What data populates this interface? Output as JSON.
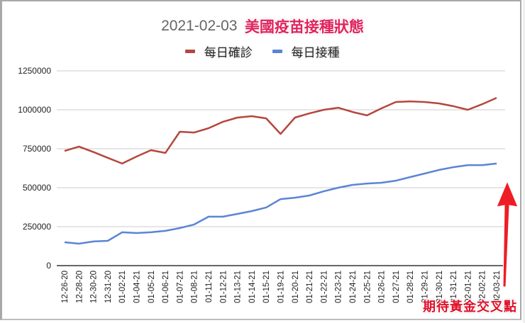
{
  "header": {
    "date": "2021-02-03",
    "title": "美國疫苗接種狀態"
  },
  "legend": [
    {
      "label": "每日確診",
      "color": "#b5473d"
    },
    {
      "label": "每日接種",
      "color": "#5b85d4"
    }
  ],
  "annotation": {
    "text": "期待黃金交叉點",
    "color": "#e0102a",
    "arrow_icon": "up-arrow"
  },
  "chart_data": {
    "type": "line",
    "title": "2021-02-03 美國疫苗接種狀態",
    "xlabel": "",
    "ylabel": "",
    "ylim": [
      0,
      1250000
    ],
    "yticks": [
      0,
      250000,
      500000,
      750000,
      1000000,
      1250000
    ],
    "ytick_labels": [
      "0",
      "250000",
      "500000",
      "750000",
      "1000000",
      "1250000"
    ],
    "grid": true,
    "legend_position": "top",
    "categories": [
      "12-26-20",
      "12-28-20",
      "12-30-20",
      "12-31-20",
      "01-02-21",
      "01-04-21",
      "01-05-21",
      "01-06-21",
      "01-07-21",
      "01-08-21",
      "01-11-21",
      "01-12-21",
      "01-13-21",
      "01-14-21",
      "01-15-21",
      "01-19-21",
      "01-20-21",
      "01-21-21",
      "01-22-21",
      "01-23-21",
      "01-24-21",
      "01-25-21",
      "01-26-21",
      "01-27-21",
      "01-28-21",
      "01-29-21",
      "01-30-21",
      "01-31-21",
      "02-01-21",
      "02-02-21",
      "02-03-21"
    ],
    "series": [
      {
        "name": "每日確診",
        "color": "#b5473d",
        "values": [
          736000,
          764000,
          729000,
          692000,
          655000,
          700000,
          741000,
          723000,
          859000,
          854000,
          882000,
          923000,
          950000,
          959000,
          945000,
          845000,
          950000,
          977000,
          1000000,
          1013000,
          986000,
          964000,
          1009000,
          1050000,
          1054000,
          1050000,
          1041000,
          1023000,
          1000000,
          1036000,
          1077000
        ]
      },
      {
        "name": "每日接種",
        "color": "#5b85d4",
        "values": [
          150000,
          141000,
          155000,
          159000,
          214000,
          209000,
          214000,
          223000,
          241000,
          264000,
          314000,
          314000,
          332000,
          350000,
          373000,
          427000,
          436000,
          450000,
          477000,
          500000,
          518000,
          527000,
          532000,
          545000,
          568000,
          591000,
          614000,
          632000,
          645000,
          645000,
          655000
        ]
      }
    ],
    "annotations": [
      {
        "text": "期待黃金交叉點",
        "type": "arrow-up",
        "position": "right edge near last category"
      }
    ]
  }
}
